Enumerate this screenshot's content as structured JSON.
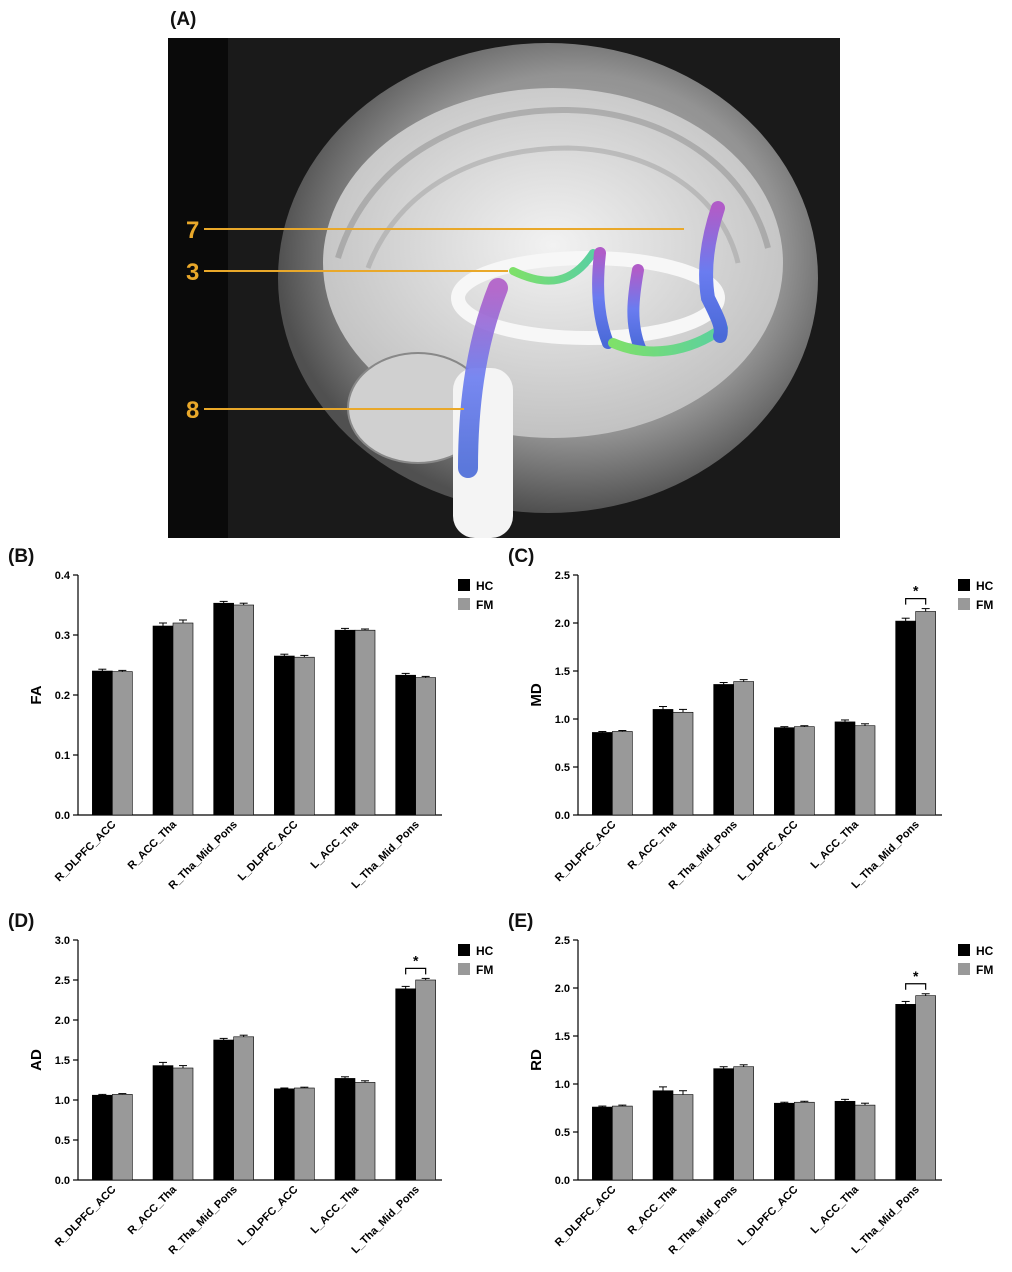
{
  "figure": {
    "panels": [
      {
        "id": "A",
        "label": "(A)"
      },
      {
        "id": "B",
        "label": "(B)"
      },
      {
        "id": "C",
        "label": "(C)"
      },
      {
        "id": "D",
        "label": "(D)"
      },
      {
        "id": "E",
        "label": "(E)"
      }
    ],
    "tract_labels": [
      "7",
      "3",
      "8"
    ],
    "colors": {
      "hc": "#000000",
      "fm": "#999999",
      "tract_line": "#e9a82a",
      "background_image": "#0a0a0a"
    }
  },
  "chart_data": [
    {
      "panel": "(B)",
      "type": "bar",
      "categories": [
        "R_DLPFC_ACC",
        "R_ACC_Tha",
        "R_Tha_Mid_Pons",
        "L_DLPFC_ACC",
        "L_ACC_Tha",
        "L_Tha_Mid_Pons"
      ],
      "series": [
        {
          "name": "HC",
          "values": [
            0.24,
            0.315,
            0.353,
            0.265,
            0.308,
            0.233
          ],
          "errors": [
            0.003,
            0.005,
            0.003,
            0.003,
            0.003,
            0.003
          ]
        },
        {
          "name": "FM",
          "values": [
            0.239,
            0.32,
            0.35,
            0.263,
            0.308,
            0.229
          ],
          "errors": [
            0.002,
            0.005,
            0.003,
            0.003,
            0.002,
            0.002
          ]
        }
      ],
      "ylabel": "FA",
      "ylim": [
        0,
        0.4
      ],
      "yticks": [
        "0.0",
        "0.1",
        "0.2",
        "0.3",
        "0.4"
      ],
      "significant": [],
      "legend": "top-right"
    },
    {
      "panel": "(C)",
      "type": "bar",
      "categories": [
        "R_DLPFC_ACC",
        "R_ACC_Tha",
        "R_Tha_Mid_Pons",
        "L_DLPFC_ACC",
        "L_ACC_Tha",
        "L_Tha_Mid_Pons"
      ],
      "series": [
        {
          "name": "HC",
          "values": [
            0.86,
            1.1,
            1.36,
            0.91,
            0.97,
            2.02
          ],
          "errors": [
            0.01,
            0.03,
            0.02,
            0.01,
            0.02,
            0.03
          ]
        },
        {
          "name": "FM",
          "values": [
            0.87,
            1.07,
            1.39,
            0.92,
            0.93,
            2.12
          ],
          "errors": [
            0.01,
            0.03,
            0.02,
            0.01,
            0.02,
            0.03
          ]
        }
      ],
      "ylabel": "MD",
      "ylim": [
        0,
        2.5
      ],
      "yticks": [
        "0.0",
        "0.5",
        "1.0",
        "1.5",
        "2.0",
        "2.5"
      ],
      "significant": [
        5
      ],
      "significance_mark": "*",
      "legend": "top-right"
    },
    {
      "panel": "(D)",
      "type": "bar",
      "categories": [
        "R_DLPFC_ACC",
        "R_ACC_Tha",
        "R_Tha_Mid_Pons",
        "L_DLPFC_ACC",
        "L_ACC_Tha",
        "L_Tha_Mid_Pons"
      ],
      "series": [
        {
          "name": "HC",
          "values": [
            1.06,
            1.43,
            1.75,
            1.14,
            1.27,
            2.39
          ],
          "errors": [
            0.01,
            0.04,
            0.02,
            0.01,
            0.02,
            0.03
          ]
        },
        {
          "name": "FM",
          "values": [
            1.07,
            1.4,
            1.79,
            1.15,
            1.22,
            2.5
          ],
          "errors": [
            0.01,
            0.03,
            0.02,
            0.01,
            0.02,
            0.02
          ]
        }
      ],
      "ylabel": "AD",
      "ylim": [
        0,
        3.0
      ],
      "yticks": [
        "0.0",
        "0.5",
        "1.0",
        "1.5",
        "2.0",
        "2.5",
        "3.0"
      ],
      "significant": [
        5
      ],
      "significance_mark": "*",
      "legend": "top-right"
    },
    {
      "panel": "(E)",
      "type": "bar",
      "categories": [
        "R_DLPFC_ACC",
        "R_ACC_Tha",
        "R_Tha_Mid_Pons",
        "L_DLPFC_ACC",
        "L_ACC_Tha",
        "L_Tha_Mid_Pons"
      ],
      "series": [
        {
          "name": "HC",
          "values": [
            0.76,
            0.93,
            1.16,
            0.8,
            0.82,
            1.83
          ],
          "errors": [
            0.01,
            0.04,
            0.02,
            0.01,
            0.02,
            0.03
          ]
        },
        {
          "name": "FM",
          "values": [
            0.77,
            0.89,
            1.18,
            0.81,
            0.78,
            1.92
          ],
          "errors": [
            0.01,
            0.04,
            0.02,
            0.01,
            0.02,
            0.02
          ]
        }
      ],
      "ylabel": "RD",
      "ylim": [
        0,
        2.5
      ],
      "yticks": [
        "0.0",
        "0.5",
        "1.0",
        "1.5",
        "2.0",
        "2.5"
      ],
      "significant": [
        5
      ],
      "significance_mark": "*",
      "legend": "top-right"
    }
  ]
}
